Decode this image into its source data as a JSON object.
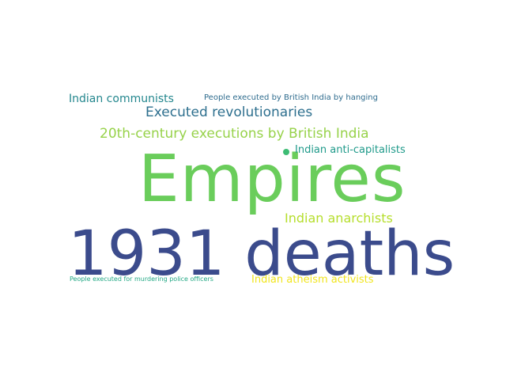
{
  "words": [
    {
      "text": "Empires",
      "color": "#6acd5b"
    },
    {
      "text": "1931 deaths",
      "color": "#3b4b8c"
    },
    {
      "text": "Executed revolutionaries",
      "color": "#2d6f8e"
    },
    {
      "text": "20th-century executions by British India",
      "color": "#97d24a"
    },
    {
      "text": "Indian communists",
      "color": "#24878e"
    },
    {
      "text": "People executed by British India by hanging",
      "color": "#2f6c8e"
    },
    {
      "text": "Indian anti-capitalists",
      "color": "#1f9a8a"
    },
    {
      "text": "Indian anarchists",
      "color": "#b5de2b"
    },
    {
      "text": "People executed for murdering police officers",
      "color": "#22a884"
    },
    {
      "text": "Indian atheism activists",
      "color": "#f1e51d"
    }
  ],
  "dot_color": "#3dbc74"
}
